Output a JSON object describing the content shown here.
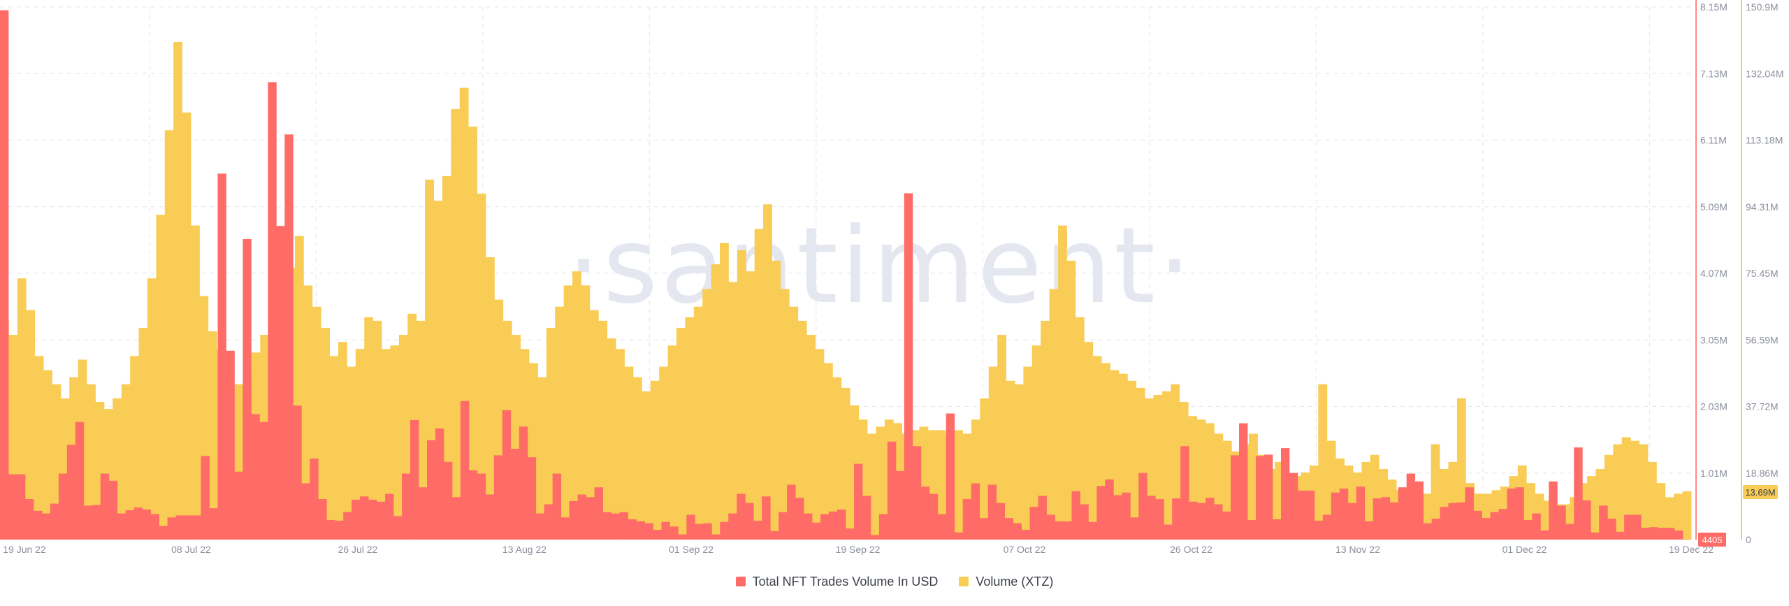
{
  "watermark": "·santiment·",
  "chart_data": {
    "type": "bar",
    "x_tick_labels": [
      "19 Jun 22",
      "08 Jul 22",
      "26 Jul 22",
      "13 Aug 22",
      "01 Sep 22",
      "19 Sep 22",
      "07 Oct 22",
      "26 Oct 22",
      "13 Nov 22",
      "01 Dec 22",
      "19 Dec 22"
    ],
    "y_right_ticks": [
      "8.15M",
      "7.13M",
      "6.11M",
      "5.09M",
      "4.07M",
      "3.05M",
      "2.03M",
      "1.01M"
    ],
    "y_right_ylim": [
      0,
      8150000
    ],
    "y_far_right_ticks": [
      "150.9M",
      "132.04M",
      "113.18M",
      "94.31M",
      "75.45M",
      "56.59M",
      "37.72M",
      "18.86M",
      "0"
    ],
    "y_far_right_ylim": [
      0,
      150900000
    ],
    "last_value_labels": {
      "usd": "4405",
      "xtz": "13.69M"
    },
    "grid": true,
    "legend_placement": "bottom-center",
    "series": [
      {
        "name": "Total NFT Trades Volume In USD",
        "color": "#ff6b66",
        "axis": "right",
        "values": [
          8100000,
          1000000,
          1000000,
          620000,
          440000,
          400000,
          550000,
          1010000,
          1450000,
          1800000,
          520000,
          530000,
          1010000,
          900000,
          400000,
          450000,
          490000,
          460000,
          390000,
          210000,
          340000,
          370000,
          370000,
          370000,
          1280000,
          480000,
          5600000,
          2890000,
          1040000,
          4600000,
          1920000,
          1800000,
          7000000,
          4800000,
          6200000,
          2050000,
          860000,
          1240000,
          620000,
          300000,
          290000,
          420000,
          610000,
          660000,
          610000,
          580000,
          700000,
          360000,
          1010000,
          1830000,
          800000,
          1520000,
          1700000,
          1190000,
          650000,
          2120000,
          1060000,
          1010000,
          690000,
          1290000,
          1980000,
          1390000,
          1730000,
          1260000,
          400000,
          540000,
          1010000,
          340000,
          590000,
          690000,
          650000,
          800000,
          420000,
          400000,
          420000,
          310000,
          280000,
          250000,
          150000,
          270000,
          200000,
          80000,
          380000,
          240000,
          250000,
          80000,
          270000,
          400000,
          700000,
          560000,
          290000,
          660000,
          130000,
          420000,
          840000,
          640000,
          400000,
          260000,
          390000,
          430000,
          460000,
          170000,
          1160000,
          670000,
          70000,
          390000,
          1500000,
          1050000,
          5300000,
          1430000,
          810000,
          700000,
          390000,
          1930000,
          110000,
          620000,
          860000,
          330000,
          840000,
          560000,
          330000,
          250000,
          150000,
          500000,
          670000,
          380000,
          280000,
          280000,
          740000,
          540000,
          270000,
          820000,
          920000,
          680000,
          720000,
          340000,
          1020000,
          670000,
          620000,
          230000,
          630000,
          1430000,
          580000,
          560000,
          640000,
          540000,
          430000,
          1290000,
          1780000,
          300000,
          1280000,
          1300000,
          310000,
          1400000,
          1020000,
          750000,
          750000,
          290000,
          380000,
          720000,
          780000,
          560000,
          810000,
          280000,
          630000,
          650000,
          570000,
          800000,
          1010000,
          890000,
          250000,
          320000,
          500000,
          560000,
          570000,
          800000,
          440000,
          330000,
          420000,
          470000,
          780000,
          800000,
          300000,
          400000,
          140000,
          890000,
          520000,
          240000,
          1410000,
          600000,
          110000,
          520000,
          320000,
          120000,
          380000,
          380000,
          180000,
          190000,
          180000,
          180000,
          140000,
          4405
        ]
      },
      {
        "name": "Volume (XTZ)",
        "color": "#f8cc55",
        "axis": "far_right",
        "values": [
          62000000,
          58000000,
          74000000,
          65000000,
          52000000,
          48000000,
          44000000,
          40000000,
          46000000,
          51000000,
          44000000,
          39000000,
          37000000,
          40000000,
          44000000,
          52000000,
          60000000,
          74000000,
          92000000,
          116000000,
          141000000,
          121000000,
          89000000,
          69000000,
          59000000,
          54000000,
          48000000,
          44000000,
          48000000,
          53000000,
          58000000,
          63000000,
          70000000,
          77000000,
          86000000,
          72000000,
          66000000,
          60000000,
          52000000,
          56000000,
          49000000,
          54000000,
          63000000,
          62000000,
          54000000,
          55000000,
          58000000,
          64000000,
          62000000,
          102000000,
          96000000,
          103000000,
          122000000,
          128000000,
          117000000,
          98000000,
          80000000,
          68000000,
          62000000,
          58000000,
          54000000,
          50000000,
          46000000,
          60000000,
          66000000,
          72000000,
          76000000,
          72000000,
          65000000,
          62000000,
          57000000,
          54000000,
          49000000,
          46000000,
          42000000,
          45000000,
          49000000,
          55000000,
          60000000,
          63000000,
          66000000,
          71000000,
          78000000,
          84000000,
          73000000,
          82000000,
          76000000,
          88000000,
          95000000,
          79000000,
          71000000,
          66000000,
          62000000,
          58000000,
          54000000,
          50000000,
          46000000,
          43000000,
          38000000,
          34000000,
          30000000,
          32000000,
          34000000,
          33000000,
          30000000,
          31000000,
          32000000,
          31000000,
          31000000,
          30000000,
          31000000,
          30000000,
          34000000,
          40000000,
          49000000,
          58000000,
          45000000,
          44000000,
          49000000,
          55000000,
          62000000,
          71000000,
          89000000,
          79000000,
          63000000,
          56000000,
          52000000,
          50000000,
          48000000,
          47000000,
          45000000,
          43000000,
          40000000,
          41000000,
          42000000,
          44000000,
          39000000,
          35000000,
          34000000,
          33000000,
          30000000,
          28000000,
          25000000,
          27000000,
          30000000,
          24000000,
          20000000,
          22000000,
          17000000,
          18000000,
          19000000,
          21000000,
          44000000,
          28000000,
          23000000,
          21000000,
          19000000,
          22000000,
          24000000,
          20000000,
          17000000,
          14000000,
          11000000,
          12000000,
          13000000,
          27000000,
          20000000,
          22000000,
          40000000,
          16000000,
          13000000,
          13000000,
          14000000,
          15000000,
          18000000,
          21000000,
          16000000,
          13000000,
          11000000,
          10000000,
          10000000,
          12000000,
          16000000,
          18000000,
          20000000,
          24000000,
          27000000,
          29000000,
          28000000,
          27000000,
          22000000,
          16000000,
          12000000,
          13000000,
          13690000
        ]
      }
    ]
  }
}
